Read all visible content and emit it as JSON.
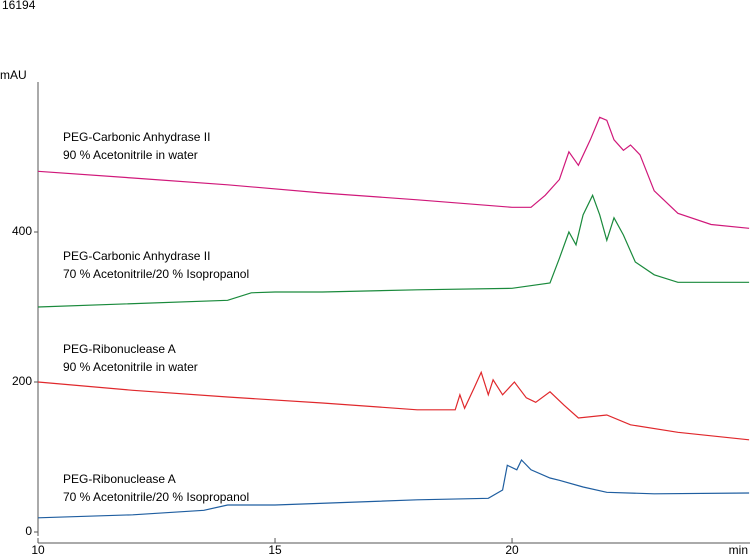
{
  "chart_data": {
    "type": "line",
    "header": "16194",
    "y_label": "mAU",
    "x_label": "min",
    "xlim": [
      10,
      25.02
    ],
    "xticks": [
      10,
      15,
      20
    ],
    "ylim": [
      0,
      600
    ],
    "yticks": [
      0,
      200,
      400
    ],
    "series": [
      {
        "name": "PEG-Carbonic Anhydrase II",
        "condition": "90 % Acetonitrile in water",
        "color": "#d0187a",
        "x": [
          10,
          12,
          14,
          16,
          18,
          20,
          20.4,
          20.7,
          21.0,
          21.2,
          21.4,
          21.65,
          21.85,
          22.0,
          22.15,
          22.35,
          22.5,
          22.7,
          23.0,
          23.5,
          24.2,
          25
        ],
        "values": [
          481,
          472,
          463,
          452,
          443,
          433,
          433,
          449,
          470,
          507,
          489,
          523,
          553,
          549,
          523,
          509,
          516,
          503,
          455,
          425,
          410,
          405
        ]
      },
      {
        "name": "PEG-Carbonic Anhydrase II",
        "condition": "70 % Acetonitrile/20 % Isopropanol",
        "color": "#1a8a3c",
        "x": [
          10,
          14,
          14.5,
          15,
          16,
          18,
          20,
          20.8,
          21.0,
          21.2,
          21.35,
          21.5,
          21.7,
          21.85,
          22.0,
          22.15,
          22.35,
          22.6,
          23,
          23.5,
          25
        ],
        "values": [
          300,
          309,
          319,
          320,
          320,
          323,
          325,
          332,
          365,
          400,
          383,
          423,
          449,
          423,
          389,
          419,
          396,
          360,
          343,
          333,
          333
        ]
      },
      {
        "name": "PEG-Ribonuclease A",
        "condition": "90 % Acetonitrile in water",
        "color": "#e0282c",
        "x": [
          10,
          12,
          14,
          16,
          18,
          18.8,
          18.9,
          19.0,
          19.2,
          19.35,
          19.5,
          19.6,
          19.8,
          20.05,
          20.3,
          20.5,
          20.8,
          21.1,
          21.4,
          22.0,
          22.5,
          23.5,
          25
        ],
        "values": [
          200,
          189,
          180,
          172,
          163,
          163,
          183,
          165,
          192,
          213,
          183,
          203,
          183,
          200,
          179,
          173,
          187,
          169,
          152,
          156,
          143,
          133,
          123
        ]
      },
      {
        "name": "PEG-Ribonuclease A",
        "condition": "70 % Acetonitrile/20 % Isopropanol",
        "color": "#1f5ea0",
        "x": [
          10,
          12,
          13.5,
          14,
          15,
          18,
          19.5,
          19.8,
          19.9,
          20.1,
          20.2,
          20.4,
          20.8,
          21.0,
          21.5,
          22.0,
          23,
          25
        ],
        "values": [
          19,
          23,
          29,
          36,
          36,
          43,
          45,
          56,
          89,
          83,
          96,
          83,
          72,
          69,
          60,
          53,
          51,
          52
        ]
      }
    ]
  }
}
